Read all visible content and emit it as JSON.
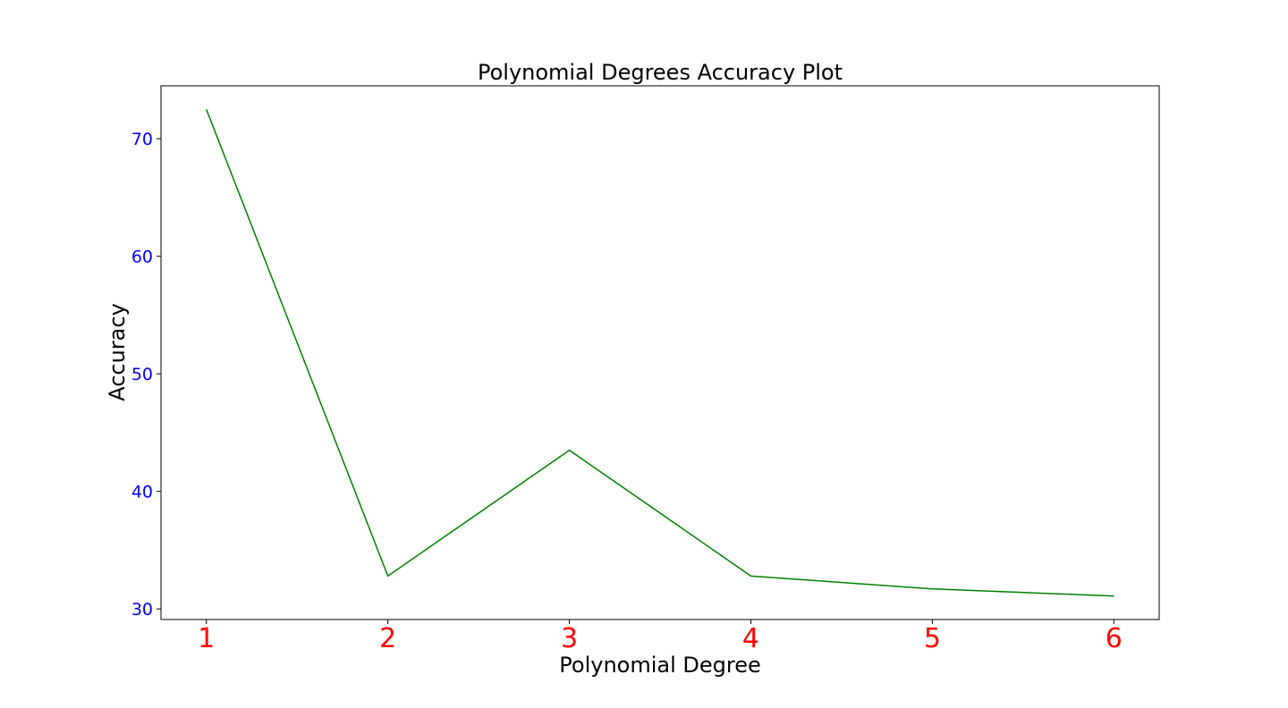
{
  "chart_data": {
    "type": "line",
    "title": "Polynomial Degrees Accuracy Plot",
    "xlabel": "Polynomial Degree",
    "ylabel": "Accuracy",
    "x": [
      1,
      2,
      3,
      4,
      5,
      6
    ],
    "xticks": [
      "1",
      "2",
      "3",
      "4",
      "5",
      "6"
    ],
    "yticks": [
      "30",
      "40",
      "50",
      "60",
      "70"
    ],
    "xlim": [
      0.75,
      6.25
    ],
    "ylim": [
      29.1,
      74.5
    ],
    "grid": false,
    "series": [
      {
        "values": [
          72.5,
          32.8,
          43.5,
          32.8,
          31.7,
          31.1
        ],
        "color": "#008000"
      }
    ],
    "colors": {
      "xtick": "#ff0000",
      "ytick": "#0000ff",
      "frame": "#000000"
    }
  }
}
